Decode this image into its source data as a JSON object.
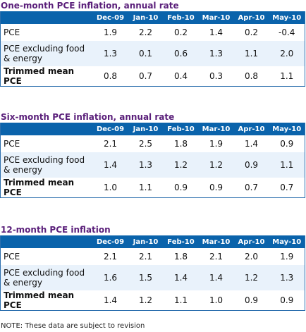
{
  "columns": [
    "Dec-09",
    "Jan-10",
    "Feb-10",
    "Mar-10",
    "Apr-10",
    "May-10"
  ],
  "tables": [
    {
      "title": "One-month PCE inflation, annual rate",
      "rows": [
        {
          "label": "PCE",
          "values": [
            "1.9",
            "2.2",
            "0.2",
            "1.4",
            "0.2",
            "-0.4"
          ]
        },
        {
          "label": "PCE excluding food & energy",
          "values": [
            "1.3",
            "0.1",
            "0.6",
            "1.3",
            "1.1",
            "2.0"
          ]
        },
        {
          "label": "Trimmed mean PCE",
          "values": [
            "0.8",
            "0.7",
            "0.4",
            "0.3",
            "0.8",
            "1.1"
          ]
        }
      ]
    },
    {
      "title": "Six-month PCE inflation, annual rate",
      "rows": [
        {
          "label": "PCE",
          "values": [
            "2.1",
            "2.5",
            "1.8",
            "1.9",
            "1.4",
            "0.9"
          ]
        },
        {
          "label": "PCE excluding food & energy",
          "values": [
            "1.4",
            "1.3",
            "1.2",
            "1.2",
            "0.9",
            "1.1"
          ]
        },
        {
          "label": "Trimmed mean PCE",
          "values": [
            "1.0",
            "1.1",
            "0.9",
            "0.9",
            "0.7",
            "0.7"
          ]
        }
      ]
    },
    {
      "title": "12-month PCE inflation",
      "rows": [
        {
          "label": "PCE",
          "values": [
            "2.1",
            "2.1",
            "1.8",
            "2.1",
            "2.0",
            "1.9"
          ]
        },
        {
          "label": "PCE excluding food & energy",
          "values": [
            "1.6",
            "1.5",
            "1.4",
            "1.4",
            "1.2",
            "1.3"
          ]
        },
        {
          "label": "Trimmed mean PCE",
          "values": [
            "1.4",
            "1.2",
            "1.1",
            "1.0",
            "0.9",
            "0.9"
          ]
        }
      ]
    }
  ],
  "note": "NOTE: These data are subject to revision",
  "colors": {
    "title": "#5a1f7a",
    "header_bg": "#0a63ab",
    "band_bg": "#e9f2fb"
  }
}
